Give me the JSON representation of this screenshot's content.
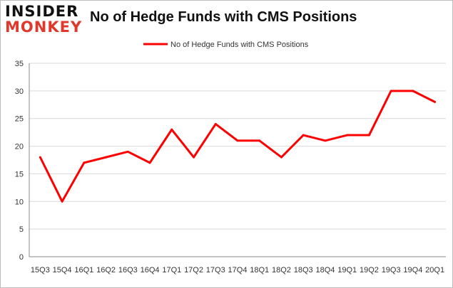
{
  "logo": {
    "line1": "INSIDER",
    "line2": "MONKEY"
  },
  "chart_data": {
    "type": "line",
    "title": "No of Hedge Funds with CMS Positions",
    "categories": [
      "15Q3",
      "15Q4",
      "16Q1",
      "16Q2",
      "16Q3",
      "16Q4",
      "17Q1",
      "17Q2",
      "17Q3",
      "17Q4",
      "18Q1",
      "18Q2",
      "18Q3",
      "18Q4",
      "19Q1",
      "19Q2",
      "19Q3",
      "19Q4",
      "20Q1"
    ],
    "series": [
      {
        "name": "No of Hedge Funds with CMS Positions",
        "color": "#ff0000",
        "values": [
          18,
          10,
          17,
          18,
          19,
          17,
          23,
          18,
          24,
          21,
          21,
          18,
          22,
          21,
          22,
          22,
          30,
          30,
          28
        ]
      }
    ],
    "ylim": [
      0,
      35
    ],
    "yticks": [
      0,
      5,
      10,
      15,
      20,
      25,
      30,
      35
    ],
    "grid": true,
    "legend": "top-center"
  }
}
